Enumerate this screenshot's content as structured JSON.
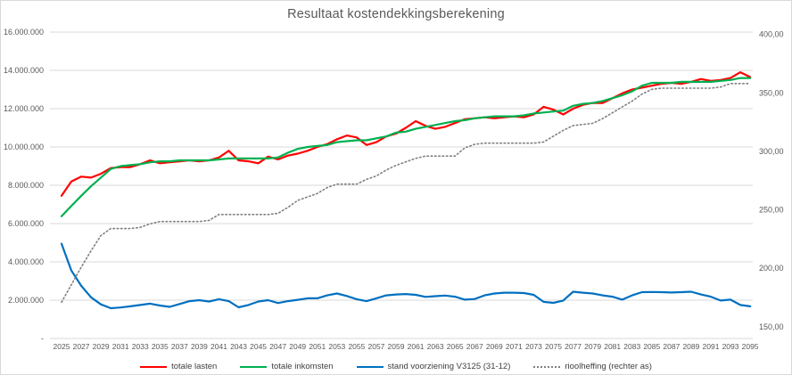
{
  "title": "Resultaat kostendekkingsberekening",
  "colors": {
    "grid": "#d9d9d9",
    "axis_text": "#595959",
    "title_text": "#595959",
    "lasten": "#ff0000",
    "inkomsten": "#00b050",
    "voorziening": "#0070c0",
    "rioolheffing": "#7f7f7f"
  },
  "chart_data": {
    "type": "line",
    "title": "Resultaat kostendekkingsberekening",
    "grid": true,
    "legend_position": "bottom",
    "x": [
      2025,
      2026,
      2027,
      2028,
      2029,
      2030,
      2031,
      2032,
      2033,
      2034,
      2035,
      2036,
      2037,
      2038,
      2039,
      2040,
      2041,
      2042,
      2043,
      2044,
      2045,
      2046,
      2047,
      2048,
      2049,
      2050,
      2051,
      2052,
      2053,
      2054,
      2055,
      2056,
      2057,
      2058,
      2059,
      2060,
      2061,
      2062,
      2063,
      2064,
      2065,
      2066,
      2067,
      2068,
      2069,
      2070,
      2071,
      2072,
      2073,
      2074,
      2075,
      2076,
      2077,
      2078,
      2079,
      2080,
      2081,
      2082,
      2083,
      2084,
      2085,
      2086,
      2087,
      2088,
      2089,
      2090,
      2091,
      2092,
      2093,
      2094,
      2095
    ],
    "x_tick_labels": [
      "2025",
      "2027",
      "2029",
      "2031",
      "2033",
      "2035",
      "2037",
      "2039",
      "2041",
      "2043",
      "2045",
      "2047",
      "2049",
      "2051",
      "2053",
      "2055",
      "2057",
      "2059",
      "2061",
      "2063",
      "2065",
      "2067",
      "2069",
      "2071",
      "2073",
      "2075",
      "2077",
      "2079",
      "2081",
      "2083",
      "2085",
      "2087",
      "2089",
      "2091",
      "2093",
      "2095"
    ],
    "left_axis": {
      "plot_min": 0,
      "plot_max": 16000000,
      "tick_values": [
        16000000,
        14000000,
        12000000,
        10000000,
        8000000,
        6000000,
        4000000,
        2000000,
        0
      ],
      "tick_labels": [
        "16.000.000",
        "14.000.000",
        "12.000.000",
        "10.000.000",
        "8.000.000",
        "6.000.000",
        "4.000.000",
        "2.000.000",
        "-"
      ]
    },
    "right_axis": {
      "plot_min": 140,
      "plot_max": 402,
      "tick_values": [
        400,
        350,
        300,
        250,
        200,
        150
      ],
      "tick_labels": [
        "400,00",
        "350,00",
        "300,00",
        "250,00",
        "200,00",
        "150,00"
      ]
    },
    "series": [
      {
        "name": "totale lasten",
        "axis": "left",
        "color": "#ff0000",
        "style": "solid",
        "values": [
          7450000,
          8200000,
          8450000,
          8400000,
          8600000,
          8900000,
          8950000,
          8950000,
          9100000,
          9300000,
          9150000,
          9200000,
          9250000,
          9300000,
          9250000,
          9300000,
          9450000,
          9800000,
          9300000,
          9250000,
          9150000,
          9500000,
          9350000,
          9550000,
          9650000,
          9800000,
          10000000,
          10150000,
          10400000,
          10600000,
          10500000,
          10100000,
          10250000,
          10550000,
          10700000,
          11000000,
          11350000,
          11100000,
          10950000,
          11050000,
          11250000,
          11450000,
          11500000,
          11550000,
          11500000,
          11550000,
          11600000,
          11550000,
          11700000,
          12100000,
          11950000,
          11700000,
          12000000,
          12200000,
          12300000,
          12300000,
          12550000,
          12800000,
          13000000,
          13100000,
          13200000,
          13300000,
          13350000,
          13300000,
          13400000,
          13550000,
          13450000,
          13500000,
          13600000,
          13900000,
          13650000
        ]
      },
      {
        "name": "totale inkomsten",
        "axis": "left",
        "color": "#00b050",
        "style": "solid",
        "values": [
          6380000,
          6920000,
          7450000,
          7950000,
          8400000,
          8850000,
          9000000,
          9050000,
          9100000,
          9200000,
          9250000,
          9250000,
          9300000,
          9300000,
          9300000,
          9300000,
          9350000,
          9400000,
          9400000,
          9400000,
          9400000,
          9400000,
          9450000,
          9700000,
          9900000,
          10000000,
          10050000,
          10100000,
          10250000,
          10300000,
          10350000,
          10350000,
          10450000,
          10550000,
          10750000,
          10800000,
          10950000,
          11050000,
          11150000,
          11250000,
          11350000,
          11400000,
          11500000,
          11550000,
          11600000,
          11600000,
          11600000,
          11650000,
          11750000,
          11800000,
          11850000,
          11900000,
          12150000,
          12250000,
          12300000,
          12400000,
          12550000,
          12700000,
          12900000,
          13200000,
          13350000,
          13350000,
          13350000,
          13400000,
          13400000,
          13400000,
          13400000,
          13450000,
          13500000,
          13600000,
          13600000
        ]
      },
      {
        "name": "stand voorziening V3125 (31-12)",
        "axis": "left",
        "color": "#0070c0",
        "style": "solid",
        "values": [
          4950000,
          3550000,
          2750000,
          2150000,
          1780000,
          1580000,
          1620000,
          1680000,
          1750000,
          1820000,
          1720000,
          1650000,
          1800000,
          1950000,
          2000000,
          1930000,
          2050000,
          1950000,
          1630000,
          1750000,
          1930000,
          2000000,
          1850000,
          1950000,
          2020000,
          2100000,
          2100000,
          2250000,
          2350000,
          2220000,
          2050000,
          1950000,
          2100000,
          2250000,
          2300000,
          2320000,
          2280000,
          2170000,
          2210000,
          2240000,
          2180000,
          2030000,
          2060000,
          2250000,
          2350000,
          2390000,
          2390000,
          2370000,
          2280000,
          1910000,
          1860000,
          1980000,
          2440000,
          2390000,
          2350000,
          2250000,
          2180000,
          2030000,
          2250000,
          2420000,
          2430000,
          2420000,
          2400000,
          2420000,
          2440000,
          2300000,
          2180000,
          1980000,
          2030000,
          1750000,
          1680000
        ]
      },
      {
        "name": "rioolheffing (rechter as)",
        "axis": "right",
        "color": "#7f7f7f",
        "style": "dotted",
        "values": [
          171,
          186,
          201,
          215,
          228,
          234,
          234,
          234,
          235,
          238,
          240,
          240,
          240,
          240,
          240,
          241,
          246,
          246,
          246,
          246,
          246,
          246,
          247,
          252,
          258,
          261,
          264,
          269,
          272,
          272,
          272,
          276,
          279,
          284,
          288,
          291,
          294,
          296,
          296,
          296,
          296,
          303,
          306,
          307,
          307,
          307,
          307,
          307,
          307,
          308,
          313,
          318,
          322,
          323,
          324,
          328,
          333,
          338,
          343,
          349,
          353,
          354,
          354,
          354,
          354,
          354,
          354,
          355,
          358,
          358,
          358
        ]
      }
    ]
  }
}
